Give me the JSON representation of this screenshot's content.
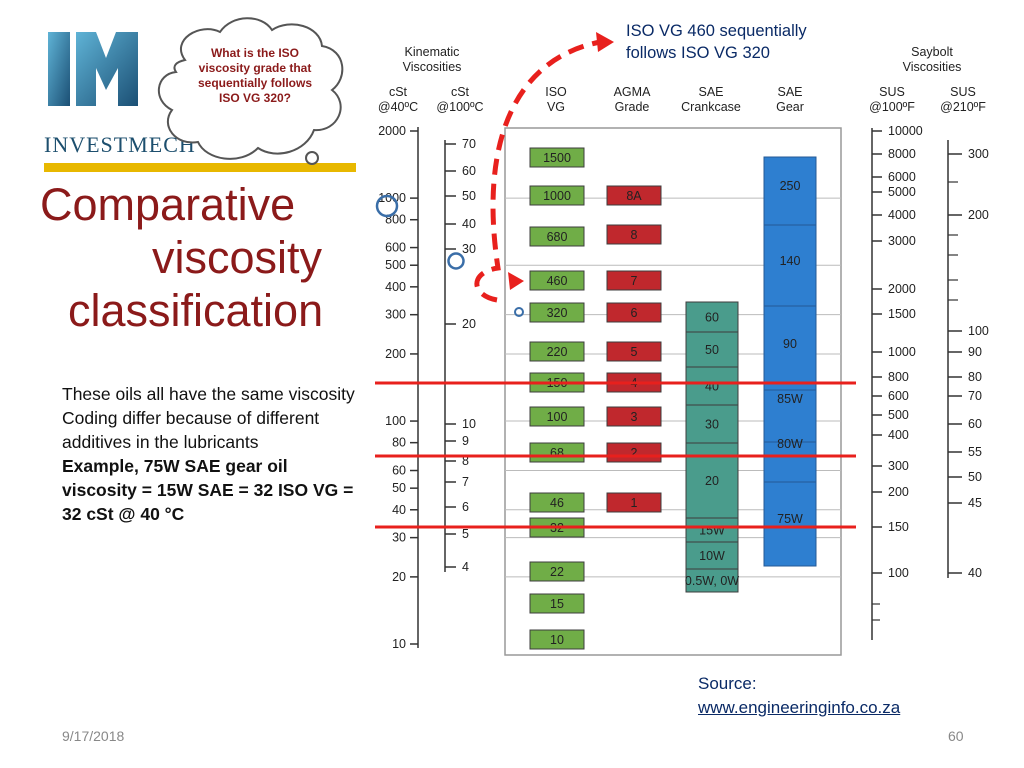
{
  "logo": {
    "word": "INVESTMECH"
  },
  "title": {
    "line1": "Comparative",
    "line2": "viscosity",
    "line3": "classification"
  },
  "cloud": {
    "text": "What is the ISO viscosity grade that sequentially follows ISO VG 320?"
  },
  "top_note": {
    "line1": "ISO VG 460 sequentially",
    "line2": "follows ISO VG 320"
  },
  "notes": {
    "line1": "These oils all have the same viscosity",
    "line2": "Coding differ because of different additives in the lubricants",
    "line3": "Example, 75W SAE gear oil viscosity = 15W SAE = 32 ISO VG = 32 cSt @ 40 °C"
  },
  "headers": {
    "kinematic": "Kinematic\nViscosities",
    "saybolt": "Saybolt\nViscosities",
    "cst40": "cSt\n@40ºC",
    "cst100": "cSt\n@100ºC",
    "iso": "ISO\nVG",
    "agma": "AGMA\nGrade",
    "sae_crank": "SAE\nCrankcase",
    "sae_gear": "SAE\nGear",
    "sus100": "SUS\n@100ºF",
    "sus210": "SUS\n@210ºF"
  },
  "colors": {
    "iso": "#70ad47",
    "agma": "#c0282d",
    "sae_crank": "#4a9c8c",
    "sae_gear": "#2e7fd0",
    "red_line": "#e8201d",
    "title": "#8b1a1a",
    "annotation": "#0a2a66"
  },
  "chart_data": {
    "type": "table",
    "scale": "log",
    "cst40_ticks": [
      "2000",
      "1000",
      "800",
      "600",
      "500",
      "400",
      "300",
      "200",
      "100",
      "80",
      "60",
      "50",
      "40",
      "30",
      "20",
      "10"
    ],
    "cst100_ticks": [
      "70",
      "60",
      "50",
      "40",
      "30",
      "20",
      "10",
      "9",
      "8",
      "7",
      "6",
      "5",
      "4"
    ],
    "iso_vg": [
      "1500",
      "1000",
      "680",
      "460",
      "320",
      "220",
      "150",
      "100",
      "68",
      "46",
      "32",
      "22",
      "15",
      "10"
    ],
    "agma": [
      "8A",
      "8",
      "7",
      "6",
      "5",
      "4",
      "3",
      "2",
      "1"
    ],
    "sae_crankcase": [
      "60",
      "50",
      "40",
      "30",
      "20",
      "15W",
      "10W",
      "0.5W, 0W"
    ],
    "sae_gear": [
      "250",
      "140",
      "90",
      "85W",
      "80W",
      "75W"
    ],
    "sus100_ticks": [
      "10000",
      "8000",
      "6000",
      "5000",
      "4000",
      "3000",
      "2000",
      "1500",
      "1000",
      "800",
      "600",
      "500",
      "400",
      "300",
      "200",
      "150",
      "100"
    ],
    "sus210_ticks": [
      "300",
      "200",
      "100",
      "90",
      "80",
      "70",
      "60",
      "55",
      "50",
      "45",
      "40"
    ]
  },
  "source": {
    "label": "Source:",
    "url": "www.engineeringinfo.co.za"
  },
  "footer": {
    "date": "9/17/2018",
    "page": "60"
  }
}
